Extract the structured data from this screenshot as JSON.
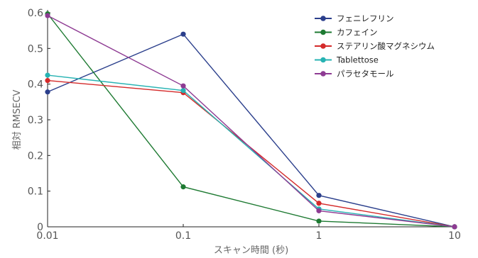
{
  "chart_data": {
    "type": "line",
    "xscale": "log",
    "x": [
      0.01,
      0.1,
      1,
      10
    ],
    "xticks": [
      "0.01",
      "0.1",
      "1",
      "10"
    ],
    "yticks": [
      "0",
      "0.1",
      "0.2",
      "0.3",
      "0.4",
      "0.5",
      "0.6"
    ],
    "xlim": [
      0.01,
      10
    ],
    "ylim": [
      0,
      0.6
    ],
    "xlabel": "スキャン時間 (秒)",
    "ylabel": "相対 RMSECV",
    "legend_position": "top-right",
    "grid": false,
    "series": [
      {
        "name": "フェニレフリン",
        "color": "#2b3f8c",
        "values": [
          0.378,
          0.54,
          0.088,
          0.0
        ]
      },
      {
        "name": "カフェイン",
        "color": "#1e7a32",
        "values": [
          0.597,
          0.112,
          0.016,
          0.0
        ]
      },
      {
        "name": "ステアリン酸マグネシウム",
        "color": "#d42a2a",
        "values": [
          0.41,
          0.376,
          0.066,
          0.0
        ]
      },
      {
        "name": "Tablettose",
        "color": "#27b3b3",
        "values": [
          0.425,
          0.382,
          0.05,
          0.0
        ]
      },
      {
        "name": "パラセタモール",
        "color": "#8e3b93",
        "values": [
          0.592,
          0.395,
          0.045,
          0.0
        ]
      }
    ]
  }
}
